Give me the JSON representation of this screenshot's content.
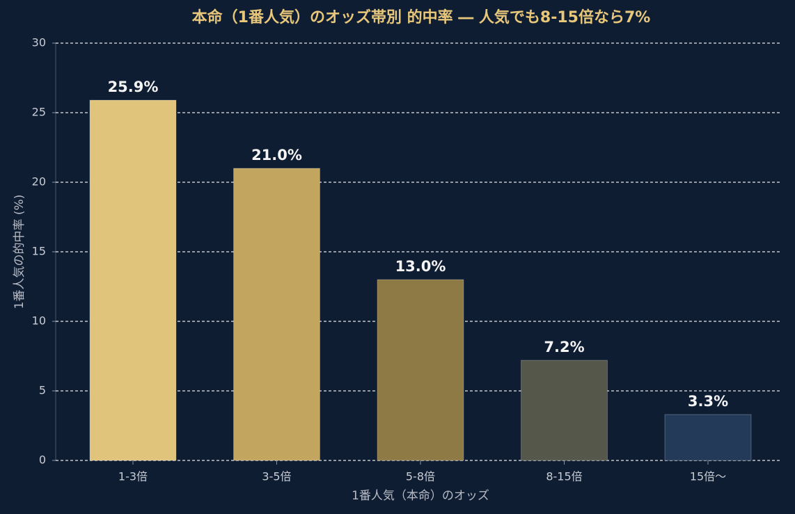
{
  "chart_data": {
    "type": "bar",
    "title": "本命（1番人気）のオッズ帯別 的中率 ― 人気でも8-15倍なら7%",
    "x_label": "1番人気（本命）のオッズ",
    "y_label": "1番人気の的中率 (%)",
    "categories": [
      "1-3倍",
      "3-5倍",
      "5-8倍",
      "8-15倍",
      "15倍〜"
    ],
    "values": [
      25.9,
      21.0,
      13.0,
      7.2,
      3.3
    ],
    "value_labels": [
      "25.9%",
      "21.0%",
      "13.0%",
      "7.2%",
      "3.3%"
    ],
    "colors": [
      "#e0c47c",
      "#c2a55f",
      "#8e7a44",
      "#55574a",
      "#233a58"
    ],
    "ylim": [
      0,
      30
    ],
    "yticks": [
      0,
      5,
      10,
      15,
      20,
      25,
      30
    ],
    "grid": true
  }
}
